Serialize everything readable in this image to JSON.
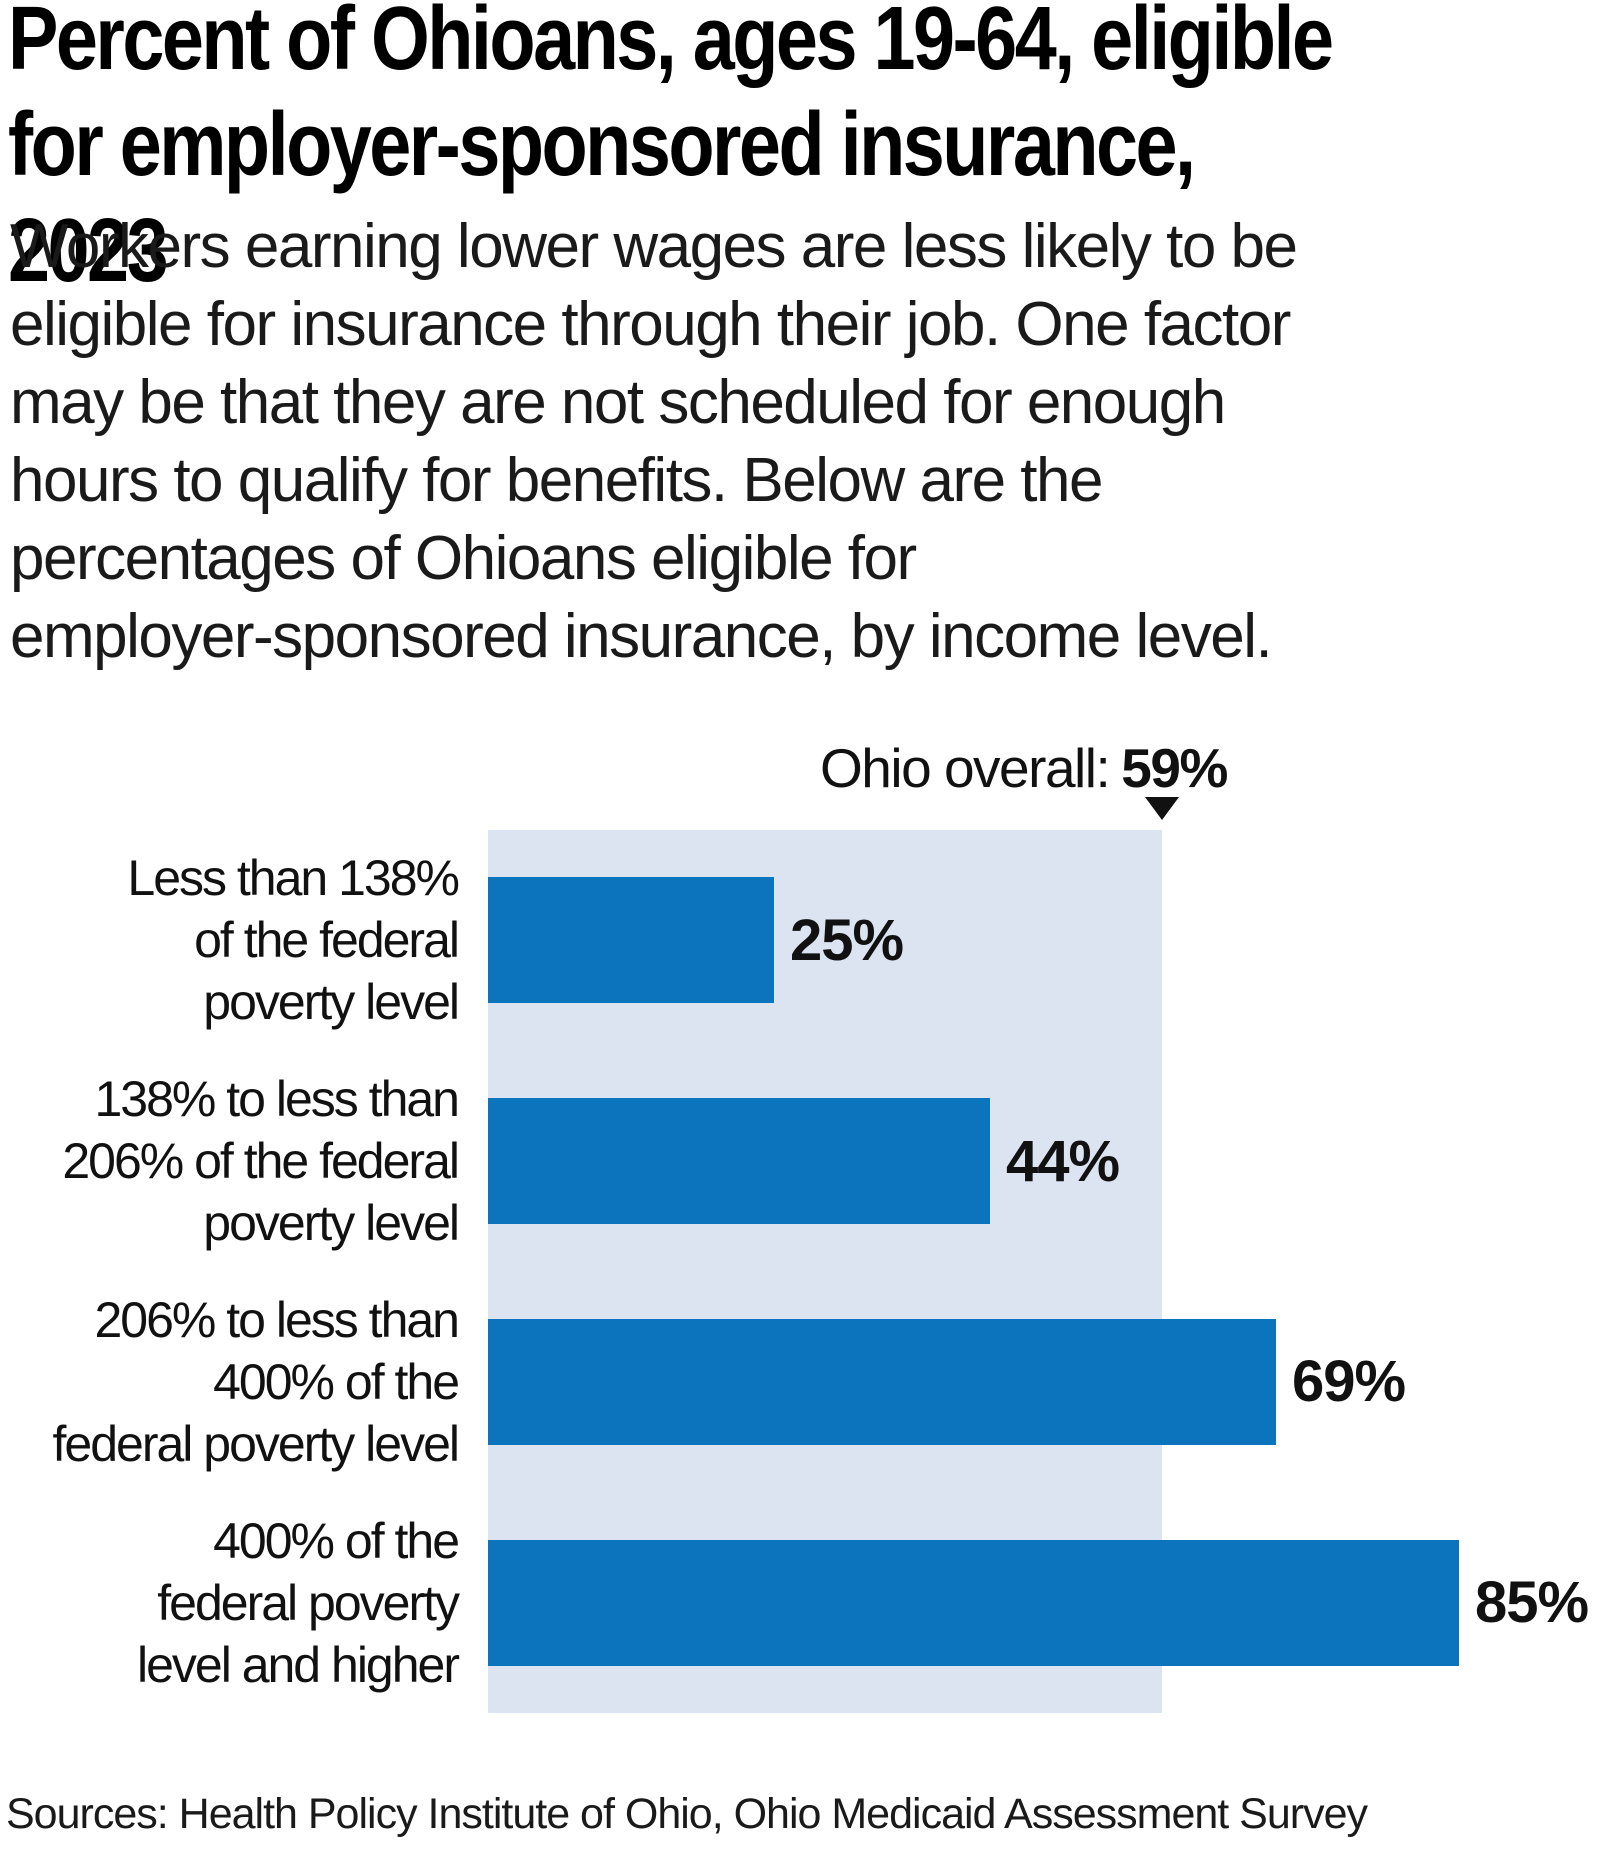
{
  "header": {
    "title": "Percent of Ohioans, ages 19-64, eligible\nfor employer-sponsored insurance, 2023",
    "subtitle": "Workers earning lower wages are less likely to be\neligible for insurance through their job. One factor\nmay be that they are not scheduled for enough\nhours to qualify for benefits. Below are the\npercentages of Ohioans eligible for\nemployer-sponsored insurance, by income level."
  },
  "chart_data": {
    "type": "bar",
    "orientation": "horizontal",
    "title": "Percent of Ohioans, ages 19-64, eligible for employer-sponsored insurance, 2023",
    "unit": "percent",
    "xlim": [
      0,
      100
    ],
    "grid": false,
    "axis_visible": false,
    "categories": [
      "Less than 138% of the federal poverty level",
      "138% to less than 206% of the federal poverty level",
      "206% to less than 400% of the federal poverty level",
      "400% of the federal poverty level and higher"
    ],
    "values": [
      25,
      44,
      69,
      85
    ],
    "bars": [
      {
        "label_lines": "Less than 138%\nof the federal\npoverty level",
        "value": 25,
        "value_label": "25%"
      },
      {
        "label_lines": "138% to less than\n206% of the federal\npoverty level",
        "value": 44,
        "value_label": "44%"
      },
      {
        "label_lines": "206% to less than\n400% of the\nfederal poverty level",
        "value": 69,
        "value_label": "69%"
      },
      {
        "label_lines": "400% of the\nfederal poverty\nlevel and higher",
        "value": 85,
        "value_label": "85%"
      }
    ],
    "reference": {
      "label": "Ohio overall:",
      "value": 59,
      "value_label": "59%"
    },
    "colors": {
      "bar": "#0b74bc",
      "reference_band": "#dde4f1",
      "text": "#111111"
    }
  },
  "footer": {
    "sources": "Sources: Health Policy Institute of Ohio, Ohio Medicaid Assessment Survey"
  }
}
